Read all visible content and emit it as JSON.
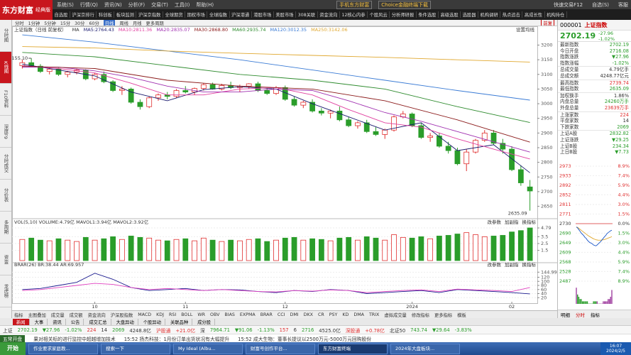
{
  "logo": {
    "name": "东方财富",
    "edition": "经典版"
  },
  "menu": [
    "系统(S)",
    "行情(Q)",
    "资讯(N)",
    "分析(F)",
    "交易(T)",
    "工具(I)",
    "帮助(H)"
  ],
  "top_links": [
    "手机东方财富",
    "Choice金融终端下载"
  ],
  "top_right": [
    "快速交易F12",
    "自选(S)",
    "客服"
  ],
  "nav_tabs": [
    "自选股",
    "沪深京排行",
    "科创板",
    "板块监测",
    "沪深京指数",
    "全球期货",
    "期权市场",
    "全球指数",
    "沪深港通",
    "港股市场",
    "美股市场",
    "308关联",
    "资金流向",
    "12核心内参",
    "个股风云",
    "分析师研报",
    "条件选股",
    "高级选股",
    "选股器",
    "机构调研",
    "热点追击",
    "高成长性",
    "机构持仓"
  ],
  "sidebar": {
    "tabs": [
      "分时图",
      "K线图",
      "F10资料",
      "深度F9",
      "分时成交",
      "分价表",
      "多周期",
      "资金",
      "龙虎榜"
    ],
    "active": 1
  },
  "toolbar": {
    "items": [
      "分时",
      "1分钟",
      "5分钟",
      "15分",
      "30分",
      "60分",
      "日线",
      "周线",
      "月线",
      "更多周期"
    ],
    "active": 6,
    "right": "前复"
  },
  "kline": {
    "title": "上证指数（日线 前复权）",
    "settings_label": "设置均线",
    "ma_legend": [
      {
        "label": "MA",
        "color": "#333333"
      },
      {
        "label": "MA5:2764.43",
        "color": "#1a1a6e"
      },
      {
        "label": "MA10:2811.36",
        "color": "#e040a0"
      },
      {
        "label": "MA20:2835.07",
        "color": "#a030b0"
      },
      {
        "label": "MA30:2868.80",
        "color": "#8b1a1a"
      },
      {
        "label": "MA60:2935.74",
        "color": "#2e8b2e"
      },
      {
        "label": "MA120:3012.35",
        "color": "#3a7bd5"
      },
      {
        "label": "MA250:3142.06",
        "color": "#e0a830"
      }
    ],
    "up_color": "#e03030",
    "down_color": "#2a9d2a",
    "ylim": [
      2615,
      3240
    ],
    "yticks": [
      2650,
      2700,
      2750,
      2800,
      2850,
      2900,
      2950,
      3000,
      3050,
      3100,
      3150,
      3200
    ],
    "candles": [
      [
        3130,
        3150,
        3120,
        3140
      ],
      [
        3140,
        3155.1,
        3125,
        3128
      ],
      [
        3128,
        3135,
        3105,
        3110
      ],
      [
        3110,
        3125,
        3100,
        3118
      ],
      [
        3118,
        3122,
        3095,
        3100
      ],
      [
        3100,
        3112,
        3090,
        3108
      ],
      [
        3108,
        3120,
        3100,
        3115
      ],
      [
        3115,
        3118,
        3080,
        3085
      ],
      [
        3085,
        3105,
        3080,
        3100
      ],
      [
        3100,
        3110,
        3070,
        3075
      ],
      [
        3075,
        3080,
        3040,
        3045
      ],
      [
        3045,
        3060,
        3030,
        3050
      ],
      [
        3050,
        3055,
        3000,
        3005
      ],
      [
        3005,
        3015,
        2980,
        2990
      ],
      [
        2990,
        3025,
        2985,
        3020
      ],
      [
        3020,
        3035,
        3010,
        3030
      ],
      [
        3030,
        3040,
        3015,
        3025
      ],
      [
        3025,
        3050,
        3020,
        3045
      ],
      [
        3045,
        3060,
        3035,
        3040
      ],
      [
        3040,
        3055,
        3030,
        3052
      ],
      [
        3052,
        3070,
        3045,
        3065
      ],
      [
        3065,
        3072,
        3048,
        3050
      ],
      [
        3050,
        3068,
        3045,
        3062
      ],
      [
        3062,
        3075,
        3050,
        3055
      ],
      [
        3055,
        3065,
        3040,
        3060
      ],
      [
        3060,
        3070,
        3050,
        3068
      ],
      [
        3068,
        3075,
        3040,
        3045
      ],
      [
        3045,
        3055,
        3030,
        3035
      ],
      [
        3035,
        3060,
        3030,
        3055
      ],
      [
        3055,
        3062,
        3010,
        3015
      ],
      [
        3015,
        3025,
        2990,
        2995
      ],
      [
        2995,
        3010,
        2985,
        3005
      ],
      [
        3005,
        3015,
        2970,
        2975
      ],
      [
        2975,
        2985,
        2960,
        2968
      ],
      [
        2968,
        2980,
        2950,
        2975
      ],
      [
        2975,
        2990,
        2940,
        2945
      ],
      [
        2945,
        2955,
        2920,
        2925
      ],
      [
        2925,
        2940,
        2915,
        2935
      ],
      [
        2935,
        2945,
        2900,
        2905
      ],
      [
        2905,
        2920,
        2890,
        2895
      ],
      [
        2895,
        2915,
        2880,
        2910
      ],
      [
        2910,
        2960,
        2905,
        2955
      ],
      [
        2955,
        2975,
        2950,
        2965
      ],
      [
        2965,
        2970,
        2920,
        2925
      ],
      [
        2925,
        2935,
        2880,
        2885
      ],
      [
        2885,
        2900,
        2870,
        2890
      ],
      [
        2890,
        2900,
        2850,
        2855
      ],
      [
        2855,
        2870,
        2830,
        2840
      ],
      [
        2840,
        2850,
        2790,
        2795
      ],
      [
        2795,
        2845,
        2770,
        2835
      ],
      [
        2835,
        2880,
        2830,
        2875
      ],
      [
        2875,
        2910,
        2870,
        2900
      ],
      [
        2900,
        2910,
        2860,
        2865
      ],
      [
        2865,
        2880,
        2830,
        2845
      ],
      [
        2845,
        2855,
        2770,
        2775
      ],
      [
        2775,
        2790,
        2720,
        2730
      ],
      [
        2716.08,
        2739.74,
        2635.09,
        2702.19
      ]
    ],
    "high_label": {
      "value": 3155.1,
      "label": "3155.10"
    },
    "low_label": {
      "value": 2635.09,
      "label": "2635.09"
    },
    "ma_lines": [
      {
        "color": "#1a1a6e",
        "x": [
          0,
          4,
          8,
          12,
          16,
          20,
          24,
          28,
          32,
          36,
          40,
          44,
          48,
          52,
          56
        ],
        "values": [
          3135,
          3115,
          3095,
          3040,
          3010,
          3048,
          3058,
          3050,
          3000,
          2955,
          2910,
          2935,
          2840,
          2860,
          2764.43
        ]
      },
      {
        "color": "#e040a0",
        "x": [
          0,
          4,
          8,
          12,
          16,
          20,
          24,
          28,
          32,
          36,
          40,
          44,
          48,
          52,
          56
        ],
        "values": [
          3130,
          3120,
          3105,
          3070,
          3030,
          3030,
          3050,
          3055,
          3030,
          2980,
          2935,
          2920,
          2880,
          2845,
          2811.36
        ]
      },
      {
        "color": "#a030b0",
        "x": [
          0,
          4,
          8,
          12,
          16,
          20,
          24,
          28,
          32,
          36,
          40,
          44,
          48,
          52,
          56
        ],
        "values": [
          3125,
          3125,
          3112,
          3090,
          3060,
          3040,
          3040,
          3050,
          3045,
          3010,
          2970,
          2940,
          2905,
          2870,
          2835.07
        ]
      },
      {
        "color": "#8b1a1a",
        "x": [
          0,
          8,
          16,
          24,
          32,
          40,
          48,
          56
        ],
        "values": [
          3128,
          3120,
          3080,
          3060,
          3050,
          3010,
          2945,
          2868.8
        ]
      },
      {
        "color": "#2e8b2e",
        "x": [
          0,
          8,
          16,
          24,
          32,
          40,
          48,
          56
        ],
        "values": [
          3175,
          3160,
          3130,
          3100,
          3080,
          3050,
          2990,
          2935.74
        ]
      },
      {
        "color": "#3a7bd5",
        "x": [
          0,
          8,
          16,
          24,
          32,
          40,
          48,
          56
        ],
        "values": [
          3235,
          3210,
          3180,
          3150,
          3115,
          3080,
          3045,
          3012.35
        ]
      },
      {
        "color": "#e0a830",
        "x": [
          0,
          8,
          16,
          24,
          32,
          40,
          48,
          56
        ],
        "values": [
          3195,
          3190,
          3180,
          3172,
          3165,
          3158,
          3150,
          3142.06
        ]
      }
    ],
    "date_labels": [
      "10",
      "11",
      "12",
      "2024",
      "02"
    ],
    "date_index": [
      8,
      18,
      29,
      43,
      54
    ]
  },
  "volume": {
    "legend": "VOL(5,10) VOLUME:4.79亿 MAVOL1:3.94亿 MAVOL2:3.92亿",
    "tools": [
      "改参数",
      "加副指",
      "换指标"
    ],
    "ylim": [
      0,
      5
    ],
    "yticks": [
      1.5,
      2.5,
      3.5,
      4.79
    ],
    "values": [
      3.1,
      3.3,
      3.0,
      2.9,
      3.2,
      3.0,
      2.8,
      3.4,
      3.0,
      3.2,
      3.5,
      3.1,
      3.6,
      3.4,
      3.3,
      3.0,
      2.9,
      3.1,
      3.2,
      2.9,
      3.3,
      3.0,
      2.8,
      3.0,
      2.9,
      3.1,
      3.2,
      2.8,
      3.0,
      3.3,
      3.4,
      3.0,
      3.2,
      3.1,
      2.9,
      3.3,
      3.4,
      3.0,
      3.5,
      3.3,
      3.0,
      3.8,
      3.4,
      3.3,
      3.5,
      3.2,
      3.6,
      3.7,
      3.9,
      4.1,
      3.8,
      3.5,
      3.6,
      3.7,
      4.2,
      4.4,
      4.79
    ]
  },
  "brar": {
    "legend": "BRAR(26) BR:38.44 AR:69.957",
    "tools": [
      "改参数",
      "加副指",
      "换指标"
    ],
    "ylim": [
      0,
      160
    ],
    "yticks": [
      20,
      40,
      60,
      80,
      100,
      120,
      144.99
    ],
    "x": [
      0,
      2,
      4,
      6,
      8,
      10,
      12,
      14,
      16,
      18,
      20,
      22,
      24,
      26,
      28,
      30,
      32,
      34,
      36,
      38,
      40,
      42,
      44,
      46,
      48,
      50,
      52,
      54,
      56
    ],
    "series": [
      {
        "color": "#1a1a8e",
        "values": [
          60,
          65,
          80,
          95,
          140,
          110,
          70,
          55,
          60,
          65,
          55,
          60,
          58,
          50,
          45,
          55,
          50,
          60,
          55,
          40,
          45,
          50,
          55,
          45,
          60,
          55,
          50,
          45,
          38.44
        ]
      },
      {
        "color": "#e040c0",
        "values": [
          55,
          60,
          70,
          80,
          90,
          85,
          70,
          60,
          65,
          60,
          55,
          60,
          55,
          50,
          48,
          55,
          52,
          58,
          55,
          45,
          50,
          55,
          58,
          50,
          62,
          58,
          55,
          50,
          69.957
        ]
      }
    ]
  },
  "indicator_tabs": [
    "指标",
    "主图叠加",
    "成交量",
    "成交额",
    "资金流向",
    "沪深股指数",
    "MACD",
    "KDJ",
    "RSI",
    "BOLL",
    "WR",
    "OBV",
    "BIAS",
    "EXPMA",
    "BRAR",
    "CCI",
    "DMI",
    "DKX",
    "CR",
    "PSY",
    "KD",
    "DMA",
    "TRIX",
    "虚拟成交量",
    "修改指标",
    "更多指标",
    "模板"
  ],
  "quote": {
    "code": "000001",
    "name": "上证指数",
    "price": "2702.19",
    "change": "-27.96",
    "pct": "-1.02%",
    "rows": [
      [
        "最新指数",
        "2702.19",
        "#2a9d2a"
      ],
      [
        "今日开盘",
        "2716.08",
        "#2a9d2a"
      ],
      [
        "指数涨跌",
        "▼27.96",
        "#2a9d2a"
      ],
      [
        "指数涨幅",
        "-1.02%",
        "#2a9d2a"
      ],
      [
        "总成交量",
        "4.79亿手",
        "#333333"
      ],
      [
        "总成交额",
        "4248.77亿元",
        "#333333"
      ],
      [
        "最高指数",
        "2739.74",
        "#e03030"
      ],
      [
        "最低指数",
        "2635.09",
        "#2a9d2a"
      ],
      [
        "加权换手",
        "1.86%",
        "#333333"
      ],
      [
        "内盘总量",
        "24260万手",
        "#2a9d2a"
      ],
      [
        "外盘总量",
        "23639万手",
        "#e03030"
      ],
      [
        "上涨家数",
        "224",
        "#e03030"
      ],
      [
        "平盘家数",
        "14",
        "#333333"
      ],
      [
        "下跌家数",
        "2069",
        "#2a9d2a"
      ],
      [
        "上证A股",
        "2832.82",
        "#2a9d2a"
      ],
      [
        "上证涨跌",
        "▼29.25",
        "#2a9d2a"
      ],
      [
        "上证B股",
        "234.34",
        "#2a9d2a"
      ],
      [
        "上日B股",
        "▼7.73",
        "#2a9d2a"
      ]
    ],
    "intraday": {
      "ylim": [
        2487,
        2973
      ],
      "yticks": [
        2487,
        2528,
        2568,
        2609,
        2649,
        2690,
        2730,
        2771,
        2811,
        2852,
        2892,
        2933,
        2973
      ],
      "pct_labels": [
        "8.9%",
        "7.4%",
        "5.9%",
        "4.4%",
        "3.0%",
        "1.5%",
        "0.0%",
        "1.5%",
        "3.0%",
        "4.4%",
        "5.9%",
        "7.4%",
        "8.9%"
      ],
      "price": [
        2716,
        2712,
        2705,
        2698,
        2690,
        2685,
        2680,
        2672,
        2668,
        2660,
        2655,
        2650,
        2648,
        2645,
        2640,
        2638,
        2636,
        2640,
        2645,
        2650,
        2655,
        2662,
        2668,
        2675,
        2680,
        2688,
        2692,
        2696,
        2700,
        2702.19
      ],
      "avg": [
        2716,
        2714,
        2711,
        2706,
        2702,
        2698,
        2694,
        2690,
        2686,
        2682,
        2678,
        2675,
        2672,
        2669,
        2666,
        2664,
        2662,
        2661,
        2660,
        2660,
        2660,
        2661,
        2662,
        2663,
        2665,
        2667,
        2669,
        2671,
        2673,
        2675
      ],
      "volume": [
        9,
        6,
        5,
        4,
        4,
        3,
        3,
        3,
        3,
        3,
        2,
        2,
        2,
        2,
        3,
        3,
        3,
        3,
        2,
        2,
        2,
        2,
        3,
        3,
        3,
        3,
        4,
        4,
        5,
        8
      ],
      "vlim": [
        0,
        10
      ]
    },
    "tabs": [
      "明细",
      "分时",
      "指标"
    ]
  },
  "bottom_tabs": [
    "新闻",
    "大事",
    "资讯",
    "公告",
    "成交汇总",
    "大盘异动",
    "个股异动",
    "关联品种",
    "成分股"
  ],
  "status": [
    [
      "上证",
      "#333333"
    ],
    [
      "2702.19",
      "#2a9d2a"
    ],
    [
      "▼27.96",
      "#2a9d2a"
    ],
    [
      "-1.02%",
      "#2a9d2a"
    ],
    [
      "224",
      "#e03030"
    ],
    [
      "14",
      "#333333"
    ],
    [
      "2069",
      "#2a9d2a"
    ],
    [
      "4248.8亿",
      "#333333"
    ],
    [
      "沪股通",
      "#e03030"
    ],
    [
      "+21.0亿",
      "#e03030"
    ],
    [
      "深",
      "#333333"
    ],
    [
      "7964.71",
      "#2a9d2a"
    ],
    [
      "▼91.06",
      "#2a9d2a"
    ],
    [
      "-1.13%",
      "#2a9d2a"
    ],
    [
      "157",
      "#e03030"
    ],
    [
      "6",
      "#333333"
    ],
    [
      "2716",
      "#2a9d2a"
    ],
    [
      "4525.0亿",
      "#333333"
    ],
    [
      "深股通",
      "#e03030"
    ],
    [
      "+0.78亿",
      "#e03030"
    ],
    [
      "北证50",
      "#333333"
    ],
    [
      "743.74",
      "#2a9d2a"
    ],
    [
      "▼29.64",
      "#2a9d2a"
    ],
    [
      "-3.83%",
      "#2a9d2a"
    ]
  ],
  "ticker": {
    "label": "五常开盘",
    "items": [
      "果对相关标的进行监控中超越增加技术",
      "15:52 扬杰科技：1月份订单出货状况有大幅提升",
      "15:52 成大生物：董事长提议以2500万元-5000万元回购股份"
    ]
  },
  "taskbar": {
    "start": "开始",
    "apps": [
      "作业要求家庭教...",
      "搜索一下",
      "My Ideal (Albu...",
      "财富号创作平台...",
      "东方财富终端",
      "2024年大盘板块..."
    ],
    "active": 4,
    "clock": [
      "16:07",
      "2024/2/5"
    ]
  }
}
